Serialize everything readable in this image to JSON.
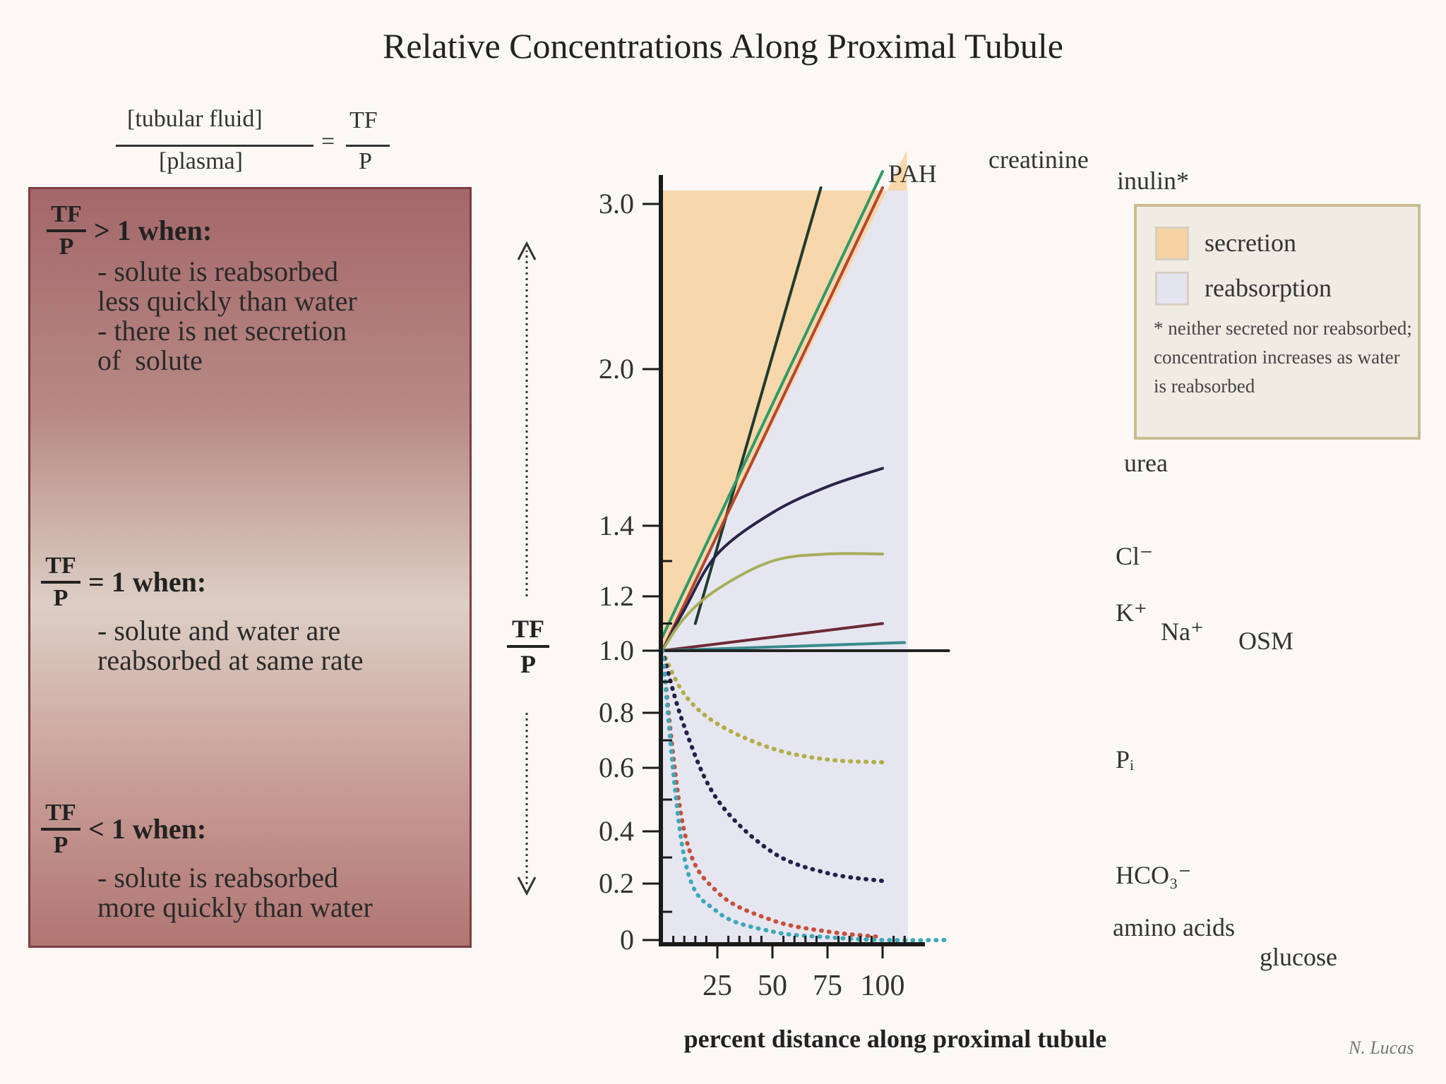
{
  "title": "Relative Concentrations Along Proximal Tubule",
  "formula": {
    "numerator": "[tubular fluid]",
    "denominator": "[plasma]",
    "equals": "=",
    "rhs_numerator": "TF",
    "rhs_denominator": "P"
  },
  "panel": {
    "frac_top": "TF",
    "frac_bottom": "P",
    "sections": [
      {
        "condition": "> 1 when:",
        "description": "- solute is reabsorbed\nless quickly than water\n- there is net secretion\nof  solute"
      },
      {
        "condition": "= 1 when:",
        "description": "- solute and water are\nreabsorbed at same rate"
      },
      {
        "condition": "< 1 when:",
        "description": "- solute is reabsorbed\nmore quickly than water"
      }
    ]
  },
  "legend": {
    "items": [
      {
        "label": "secretion",
        "color": "#f7d3a3"
      },
      {
        "label": "reabsorption",
        "color": "#e4e4f0"
      }
    ],
    "note": "* neither secreted nor reabsorbed; concentration increases as water is reabsorbed"
  },
  "colors": {
    "secretion": "#f8d7ab",
    "reabsorption": "#e6e6f1",
    "axis": "#1a1a1a"
  },
  "chart_data": {
    "type": "line",
    "xlabel": "percent distance along proximal tubule",
    "ylabel_top": "TF",
    "ylabel_bottom": "P",
    "x_ticks": [
      25,
      50,
      75,
      100
    ],
    "y_ticks": [
      "0",
      "0.2",
      "0.4",
      "0.6",
      "0.8",
      "1.0",
      "1.2",
      "1.4",
      "2.0",
      "3.0"
    ],
    "series": [
      {
        "name": "PAH",
        "style": "solid",
        "color": "#1f3b2e",
        "x": [
          15,
          72
        ],
        "y": [
          1.1,
          3.1
        ]
      },
      {
        "name": "creatinine",
        "style": "solid",
        "color": "#2f9a67",
        "x": [
          0,
          100
        ],
        "y": [
          1.05,
          3.2
        ]
      },
      {
        "name": "inulin*",
        "style": "solid",
        "color": "#b5462e",
        "x": [
          0,
          100
        ],
        "y": [
          1.0,
          3.1
        ]
      },
      {
        "name": "urea",
        "style": "solid",
        "color": "#2a2448",
        "x": [
          0,
          10,
          25,
          50,
          75,
          100
        ],
        "y": [
          1.0,
          1.15,
          1.32,
          1.45,
          1.55,
          1.62
        ]
      },
      {
        "name": "Cl-",
        "style": "solid",
        "color": "#a8ad5a",
        "x": [
          0,
          10,
          25,
          50,
          75,
          100
        ],
        "y": [
          1.0,
          1.12,
          1.22,
          1.3,
          1.32,
          1.32
        ]
      },
      {
        "name": "K+",
        "style": "solid",
        "color": "#6e2a34",
        "x": [
          0,
          100
        ],
        "y": [
          1.0,
          1.1
        ]
      },
      {
        "name": "Na+",
        "style": "solid",
        "color": "#3a8a8a",
        "x": [
          0,
          110
        ],
        "y": [
          1.0,
          1.03
        ]
      },
      {
        "name": "OSM",
        "style": "solid",
        "color": "#222222",
        "x": [
          0,
          130
        ],
        "y": [
          1.0,
          1.0
        ]
      },
      {
        "name": "Pi",
        "style": "dotted",
        "color": "#b3ad45",
        "x": [
          0,
          10,
          25,
          50,
          75,
          100
        ],
        "y": [
          1.0,
          0.86,
          0.76,
          0.67,
          0.63,
          0.62
        ]
      },
      {
        "name": "HCO3-",
        "style": "dotted",
        "color": "#23204a",
        "x": [
          0,
          10,
          25,
          50,
          75,
          100
        ],
        "y": [
          1.0,
          0.75,
          0.5,
          0.32,
          0.24,
          0.21
        ]
      },
      {
        "name": "amino acids",
        "style": "dotted",
        "color": "#c7503a",
        "x": [
          0,
          10,
          25,
          50,
          75,
          100
        ],
        "y": [
          1.0,
          0.4,
          0.17,
          0.07,
          0.03,
          0.01
        ]
      },
      {
        "name": "glucose",
        "style": "dotted",
        "color": "#3ba9ba",
        "x": [
          0,
          10,
          25,
          50,
          75,
          100,
          130
        ],
        "y": [
          1.0,
          0.3,
          0.1,
          0.03,
          0.01,
          0.0,
          0.0
        ]
      }
    ],
    "label_text": {
      "PAH": "PAH",
      "creatinine": "creatinine",
      "inulin*": "inulin*",
      "urea": "urea",
      "Cl-": "Cl⁻",
      "K+": "K⁺",
      "Na+": "Na⁺",
      "OSM": "OSM",
      "Pi": "Pᵢ",
      "HCO3-": "HCO₃⁻",
      "amino acids": "amino acids",
      "glucose": "glucose"
    }
  },
  "signature": "N. Lucas"
}
